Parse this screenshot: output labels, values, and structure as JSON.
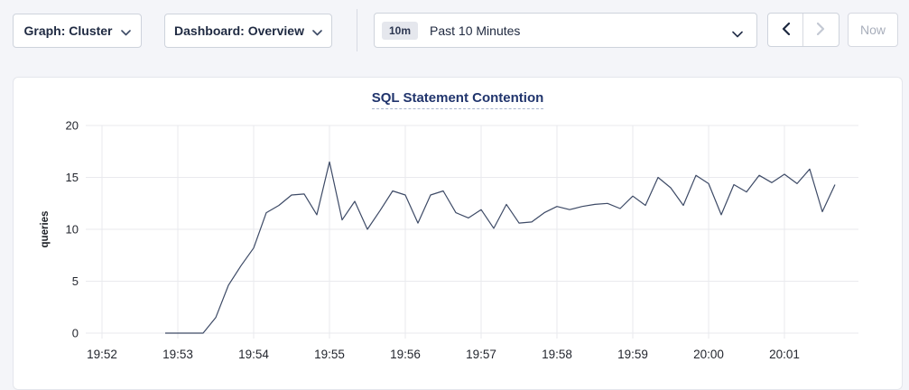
{
  "toolbar": {
    "graph_dropdown": "Graph: Cluster",
    "dashboard_dropdown": "Dashboard: Overview",
    "time_window_badge": "10m",
    "time_window_label": "Past 10 Minutes",
    "now_button": "Now",
    "prev_icon": "chevron-left",
    "next_icon": "chevron-right"
  },
  "chart": {
    "title": "SQL Statement Contention",
    "ylabel": "queries"
  },
  "chart_data": {
    "type": "line",
    "title": "SQL Statement Contention",
    "xlabel": "",
    "ylabel": "queries",
    "ylim": [
      0,
      20
    ],
    "y_ticks": [
      0,
      5,
      10,
      15,
      20
    ],
    "x_ticks": [
      "19:52",
      "19:53",
      "19:54",
      "19:55",
      "19:56",
      "19:57",
      "19:58",
      "19:59",
      "20:00",
      "20:01"
    ],
    "grid": true,
    "legend": "none",
    "series": [
      {
        "name": "queries",
        "start_time": "19:52:50",
        "interval_seconds": 10,
        "values": [
          0,
          0,
          0,
          0,
          1.5,
          4.6,
          6.5,
          8.2,
          11.6,
          12.3,
          13.3,
          13.4,
          11.4,
          16.5,
          10.9,
          12.7,
          10.0,
          11.8,
          13.7,
          13.3,
          10.6,
          13.3,
          13.7,
          11.6,
          11.1,
          11.9,
          10.1,
          12.4,
          10.6,
          10.7,
          11.6,
          12.2,
          11.9,
          12.2,
          12.4,
          12.5,
          12.0,
          13.2,
          12.3,
          15.0,
          14.0,
          12.3,
          15.2,
          14.4,
          11.4,
          14.3,
          13.6,
          15.2,
          14.5,
          15.3,
          14.4,
          15.8,
          11.7,
          14.3
        ]
      }
    ],
    "colors": {
      "line": "#3d4a66",
      "grid": "#e9eaee",
      "tick_text": "#23262e",
      "axis_title_text": "#1d2026"
    }
  },
  "colors": {
    "page_background": "#f4f5f9",
    "panel_background": "#ffffff",
    "button_text": "#1f2a42",
    "title_text": "#21356d",
    "disabled_text": "#a8aebb"
  }
}
